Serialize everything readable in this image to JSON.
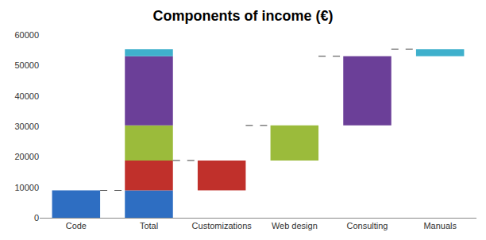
{
  "chart_data": {
    "type": "waterfall",
    "title": "Components of income (€)",
    "categories": [
      "Code",
      "Customizations",
      "Web design",
      "Consulting",
      "Manuals",
      "Total"
    ],
    "values": [
      9000,
      9800,
      11500,
      22700,
      2300,
      null
    ],
    "colors": [
      "#2e6ec2",
      "#c0302b",
      "#9bbb3b",
      "#6b3f98",
      "#3fb0cc",
      null
    ],
    "ylim": [
      0,
      60000
    ],
    "yticks": [
      0,
      10000,
      20000,
      30000,
      40000,
      50000,
      60000
    ],
    "grid": false
  }
}
